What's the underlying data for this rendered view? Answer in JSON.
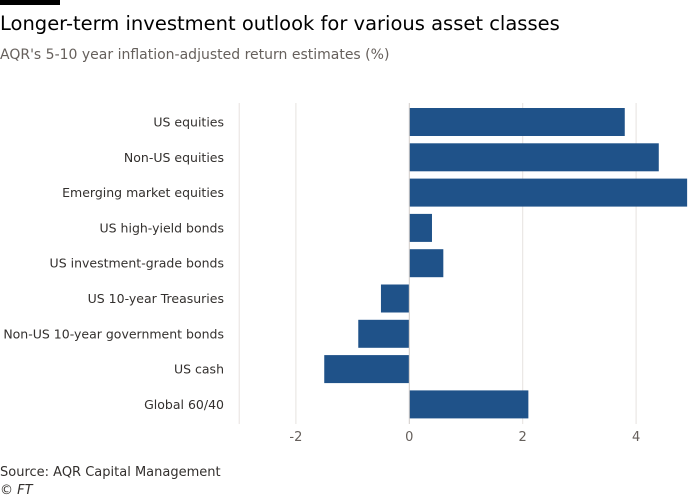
{
  "title": "Longer-term investment outlook for various asset classes",
  "subtitle": "AQR's 5-10 year inflation-adjusted return estimates (%)",
  "source": "Source: AQR Capital Management",
  "credit": "© FT",
  "chart_data": {
    "type": "bar",
    "orientation": "horizontal",
    "categories": [
      "US equities",
      "Non-US equities",
      "Emerging market equities",
      "US high-yield bonds",
      "US investment-grade bonds",
      "US 10-year Treasuries",
      "Non-US 10-year government bonds",
      "US cash",
      "Global 60/40"
    ],
    "values": [
      3.8,
      4.4,
      4.9,
      0.4,
      0.6,
      -0.5,
      -0.9,
      -1.5,
      2.1
    ],
    "xlim": [
      -3,
      4.9
    ],
    "xticks": [
      -2,
      0,
      2,
      4
    ],
    "xtick_labels": [
      "-2",
      "0",
      "2",
      "4"
    ],
    "grid": true,
    "bar_color": "#1f5289",
    "xlabel": "",
    "ylabel": ""
  }
}
